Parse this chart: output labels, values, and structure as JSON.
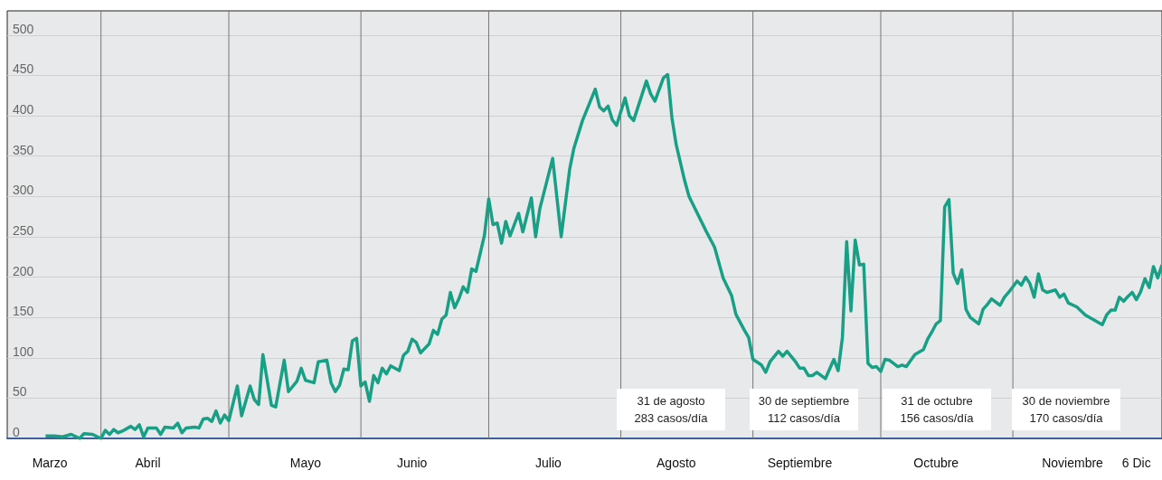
{
  "chart_data": {
    "type": "line",
    "x": [
      "--03-19",
      "--03-21",
      "--03-23",
      "--03-25",
      "--03-27",
      "--03-28",
      "--03-30",
      "--04-01",
      "--04-02",
      "--04-03",
      "--04-04",
      "--04-05",
      "--04-06",
      "--04-08",
      "--04-09",
      "--04-10",
      "--04-11",
      "--04-12",
      "--04-14",
      "--04-15",
      "--04-16",
      "--04-18",
      "--04-19",
      "--04-20",
      "--04-21",
      "--04-23",
      "--04-24",
      "--04-25",
      "--04-26",
      "--04-27",
      "--04-28",
      "--04-29",
      "--04-30",
      "--05-01",
      "--05-03",
      "--05-04",
      "--05-06",
      "--05-07",
      "--05-08",
      "--05-09",
      "--05-11",
      "--05-12",
      "--05-14",
      "--05-15",
      "--05-17",
      "--05-18",
      "--05-19",
      "--05-21",
      "--05-22",
      "--05-24",
      "--05-25",
      "--05-26",
      "--05-27",
      "--05-28",
      "--05-29",
      "--05-30",
      "--05-31",
      "--06-01",
      "--06-02",
      "--06-03",
      "--06-04",
      "--06-05",
      "--06-06",
      "--06-07",
      "--06-08",
      "--06-10",
      "--06-11",
      "--06-12",
      "--06-13",
      "--06-14",
      "--06-15",
      "--06-17",
      "--06-18",
      "--06-19",
      "--06-20",
      "--06-21",
      "--06-22",
      "--06-23",
      "--06-24",
      "--06-25",
      "--06-26",
      "--06-27",
      "--06-28",
      "--06-30",
      "--07-01",
      "--07-02",
      "--07-03",
      "--07-04",
      "--07-05",
      "--07-06",
      "--07-08",
      "--07-09",
      "--07-11",
      "--07-12",
      "--07-13",
      "--07-16",
      "--07-18",
      "--07-20",
      "--07-21",
      "--07-23",
      "--07-26",
      "--07-27",
      "--07-28",
      "--07-29",
      "--07-30",
      "--07-31",
      "--08-02",
      "--08-03",
      "--08-04",
      "--08-07",
      "--08-08",
      "--08-09",
      "--08-11",
      "--08-12",
      "--08-13",
      "--08-14",
      "--08-16",
      "--08-17",
      "--08-21",
      "--08-23",
      "--08-25",
      "--08-27",
      "--08-28",
      "--08-30",
      "--08-31",
      "--09-01",
      "--09-03",
      "--09-04",
      "--09-05",
      "--09-07",
      "--09-08",
      "--09-09",
      "--09-11",
      "--09-12",
      "--09-13",
      "--09-14",
      "--09-15",
      "--09-16",
      "--09-18",
      "--09-20",
      "--09-21",
      "--09-22",
      "--09-23",
      "--09-24",
      "--09-25",
      "--09-26",
      "--09-27",
      "--09-28",
      "--09-29",
      "--09-30",
      "--10-01",
      "--10-02",
      "--10-03",
      "--10-05",
      "--10-06",
      "--10-07",
      "--10-09",
      "--10-11",
      "--10-12",
      "--10-13",
      "--10-14",
      "--10-15",
      "--10-16",
      "--10-17",
      "--10-18",
      "--10-19",
      "--10-20",
      "--10-21",
      "--10-22",
      "--10-24",
      "--10-25",
      "--10-26",
      "--10-27",
      "--10-29",
      "--10-30",
      "--10-31",
      "--11-02",
      "--11-03",
      "--11-04",
      "--11-05",
      "--11-06",
      "--11-07",
      "--11-08",
      "--11-09",
      "--11-11",
      "--11-12",
      "--11-13",
      "--11-14",
      "--11-16",
      "--11-18",
      "--11-22",
      "--11-23",
      "--11-24",
      "--11-25",
      "--11-26",
      "--11-27",
      "--11-28",
      "--11-29",
      "--11-30",
      "--12-01",
      "--12-02",
      "--12-03",
      "--12-04",
      "--12-05",
      "--12-06"
    ],
    "series": [
      {
        "color": "#17a085",
        "values": [
          3,
          3,
          2,
          5,
          0,
          6,
          5,
          0,
          10,
          5,
          11,
          7,
          9,
          15,
          11,
          17,
          2,
          13,
          13,
          5,
          14,
          13,
          19,
          7,
          13,
          14,
          13,
          24,
          25,
          21,
          34,
          19,
          29,
          22,
          65,
          28,
          65,
          48,
          42,
          104,
          41,
          39,
          97,
          58,
          71,
          87,
          72,
          69,
          95,
          97,
          69,
          58,
          66,
          86,
          85,
          121,
          124,
          65,
          70,
          46,
          78,
          69,
          87,
          80,
          90,
          84,
          103,
          108,
          123,
          119,
          106,
          117,
          134,
          129,
          148,
          153,
          181,
          162,
          173,
          188,
          181,
          210,
          207,
          252,
          297,
          265,
          267,
          242,
          269,
          251,
          279,
          256,
          298,
          250,
          285,
          347,
          250,
          334,
          360,
          394,
          433,
          411,
          406,
          412,
          395,
          388,
          422,
          400,
          394,
          443,
          427,
          418,
          447,
          451,
          397,
          364,
          319,
          300,
          257,
          237,
          199,
          177,
          154,
          134,
          125,
          98,
          91,
          82,
          95,
          108,
          102,
          108,
          95,
          87,
          87,
          78,
          78,
          82,
          74,
          98,
          84,
          125,
          244,
          158,
          246,
          215,
          216,
          93,
          88,
          89,
          83,
          98,
          97,
          89,
          91,
          89,
          104,
          110,
          123,
          132,
          142,
          146,
          287,
          296,
          205,
          192,
          209,
          160,
          150,
          142,
          160,
          166,
          173,
          165,
          175,
          181,
          195,
          190,
          200,
          192,
          175,
          204,
          184,
          181,
          184,
          175,
          179,
          168,
          163,
          153,
          141,
          153,
          159,
          159,
          175,
          170,
          176,
          181,
          172,
          182,
          198,
          187,
          213,
          199,
          215
        ]
      }
    ],
    "xlim": [
      "--03-10",
      "--12-06"
    ],
    "xticks": [
      {
        "value": "--03-20",
        "label": "Marzo"
      },
      {
        "value": "--04-01",
        "label": null
      },
      {
        "value": "--04-12",
        "label": "Abril"
      },
      {
        "value": "--05-01",
        "label": null
      },
      {
        "value": "--05-19",
        "label": "Mayo"
      },
      {
        "value": "--06-01",
        "label": null
      },
      {
        "value": "--06-13",
        "label": "Junio"
      },
      {
        "value": "--07-01",
        "label": null
      },
      {
        "value": "--07-15",
        "label": "Julio"
      },
      {
        "value": "--08-01",
        "label": null
      },
      {
        "value": "--08-14",
        "label": "Agosto"
      },
      {
        "value": "--09-01",
        "label": null
      },
      {
        "value": "--09-12",
        "label": "Septiembre"
      },
      {
        "value": "--10-01",
        "label": null
      },
      {
        "value": "--10-14",
        "label": "Octubre"
      },
      {
        "value": "--11-01",
        "label": null
      },
      {
        "value": "--11-15",
        "label": "Noviembre"
      },
      {
        "value": "--11-30",
        "label": "6 Dic"
      }
    ],
    "ylim": [
      0,
      530
    ],
    "yticks": [
      0,
      50,
      100,
      150,
      200,
      250,
      300,
      350,
      400,
      450,
      500
    ],
    "grid": true,
    "annotations": [
      "31 de agosto\n283 casos/día",
      "30 de septiembre\n112 casos/día",
      "31 de octubre\n156 casos/día",
      "30 de noviembre\n170 casos/día"
    ]
  }
}
